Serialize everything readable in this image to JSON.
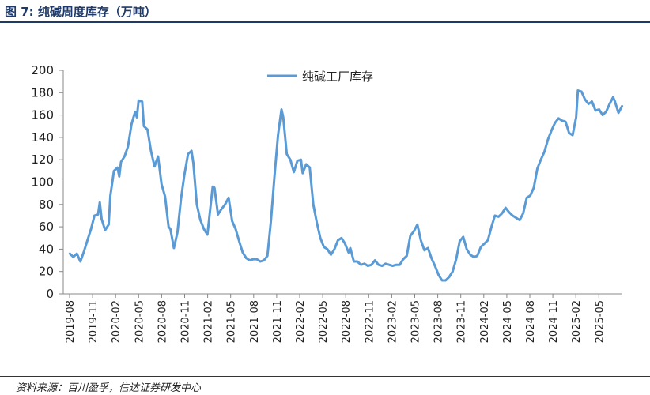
{
  "header": {
    "title": "图 7:  纯碱周度库存（万吨）"
  },
  "footer": {
    "source": "资料来源：百川盈孚，信达证券研发中心"
  },
  "colors": {
    "series": "#5b9bd5",
    "title": "#1f3a68"
  },
  "chart_data": {
    "type": "line",
    "title": "",
    "xlabel": "",
    "ylabel": "",
    "ylim": [
      0,
      200
    ],
    "yticks": [
      0,
      20,
      40,
      60,
      80,
      100,
      120,
      140,
      160,
      180,
      200
    ],
    "xtick_labels": [
      "2019-08",
      "2019-11",
      "2020-02",
      "2020-05",
      "2020-08",
      "2020-11",
      "2021-02",
      "2021-05",
      "2021-08",
      "2021-11",
      "2022-02",
      "2022-05",
      "2022-08",
      "2022-11",
      "2023-02",
      "2023-05",
      "2023-08",
      "2023-11",
      "2024-02",
      "2024-05",
      "2024-08",
      "2024-11",
      "2025-02",
      "2025-05"
    ],
    "legend": {
      "position": "top-center"
    },
    "grid": false,
    "series": [
      {
        "name": "纯碱工厂库存",
        "points": [
          [
            "2019-08-02",
            36
          ],
          [
            "2019-08-16",
            33
          ],
          [
            "2019-08-30",
            36
          ],
          [
            "2019-09-13",
            29
          ],
          [
            "2019-09-27",
            38
          ],
          [
            "2019-10-11",
            48
          ],
          [
            "2019-10-25",
            58
          ],
          [
            "2019-11-08",
            70
          ],
          [
            "2019-11-22",
            71
          ],
          [
            "2019-11-29",
            82
          ],
          [
            "2019-12-06",
            67
          ],
          [
            "2019-12-20",
            57
          ],
          [
            "2020-01-03",
            62
          ],
          [
            "2020-01-10",
            88
          ],
          [
            "2020-01-24",
            110
          ],
          [
            "2020-02-07",
            113
          ],
          [
            "2020-02-14",
            105
          ],
          [
            "2020-02-21",
            118
          ],
          [
            "2020-03-06",
            123
          ],
          [
            "2020-03-20",
            132
          ],
          [
            "2020-04-03",
            152
          ],
          [
            "2020-04-17",
            163
          ],
          [
            "2020-04-24",
            158
          ],
          [
            "2020-05-01",
            173
          ],
          [
            "2020-05-15",
            172
          ],
          [
            "2020-05-22",
            150
          ],
          [
            "2020-06-05",
            147
          ],
          [
            "2020-06-19",
            128
          ],
          [
            "2020-07-03",
            114
          ],
          [
            "2020-07-17",
            123
          ],
          [
            "2020-07-31",
            98
          ],
          [
            "2020-08-14",
            87
          ],
          [
            "2020-08-28",
            60
          ],
          [
            "2020-09-04",
            58
          ],
          [
            "2020-09-18",
            41
          ],
          [
            "2020-10-02",
            55
          ],
          [
            "2020-10-16",
            85
          ],
          [
            "2020-10-30",
            107
          ],
          [
            "2020-11-13",
            125
          ],
          [
            "2020-11-27",
            128
          ],
          [
            "2020-12-04",
            117
          ],
          [
            "2020-12-18",
            80
          ],
          [
            "2021-01-01",
            66
          ],
          [
            "2021-01-15",
            58
          ],
          [
            "2021-01-29",
            53
          ],
          [
            "2021-02-12",
            82
          ],
          [
            "2021-02-19",
            96
          ],
          [
            "2021-02-26",
            95
          ],
          [
            "2021-03-12",
            71
          ],
          [
            "2021-03-26",
            76
          ],
          [
            "2021-04-09",
            80
          ],
          [
            "2021-04-23",
            86
          ],
          [
            "2021-05-07",
            65
          ],
          [
            "2021-05-21",
            58
          ],
          [
            "2021-06-04",
            47
          ],
          [
            "2021-06-18",
            37
          ],
          [
            "2021-07-02",
            32
          ],
          [
            "2021-07-16",
            30
          ],
          [
            "2021-07-30",
            31
          ],
          [
            "2021-08-13",
            31
          ],
          [
            "2021-08-27",
            29
          ],
          [
            "2021-09-10",
            30
          ],
          [
            "2021-09-24",
            34
          ],
          [
            "2021-10-08",
            65
          ],
          [
            "2021-10-22",
            105
          ],
          [
            "2021-11-05",
            142
          ],
          [
            "2021-11-19",
            165
          ],
          [
            "2021-11-26",
            158
          ],
          [
            "2021-12-10",
            125
          ],
          [
            "2021-12-24",
            120
          ],
          [
            "2022-01-07",
            109
          ],
          [
            "2022-01-21",
            119
          ],
          [
            "2022-02-04",
            120
          ],
          [
            "2022-02-11",
            108
          ],
          [
            "2022-02-25",
            116
          ],
          [
            "2022-03-11",
            113
          ],
          [
            "2022-03-25",
            80
          ],
          [
            "2022-04-08",
            64
          ],
          [
            "2022-04-22",
            50
          ],
          [
            "2022-05-06",
            42
          ],
          [
            "2022-05-20",
            40
          ],
          [
            "2022-06-03",
            35
          ],
          [
            "2022-06-17",
            40
          ],
          [
            "2022-07-01",
            48
          ],
          [
            "2022-07-15",
            50
          ],
          [
            "2022-07-29",
            45
          ],
          [
            "2022-08-12",
            37
          ],
          [
            "2022-08-19",
            41
          ],
          [
            "2022-09-02",
            29
          ],
          [
            "2022-09-16",
            29
          ],
          [
            "2022-09-30",
            26
          ],
          [
            "2022-10-14",
            27
          ],
          [
            "2022-10-28",
            25
          ],
          [
            "2022-11-11",
            26
          ],
          [
            "2022-11-25",
            30
          ],
          [
            "2022-12-09",
            26
          ],
          [
            "2022-12-23",
            25
          ],
          [
            "2023-01-06",
            27
          ],
          [
            "2023-01-20",
            26
          ],
          [
            "2023-02-03",
            25
          ],
          [
            "2023-02-17",
            26
          ],
          [
            "2023-03-03",
            26
          ],
          [
            "2023-03-17",
            31
          ],
          [
            "2023-03-31",
            34
          ],
          [
            "2023-04-14",
            52
          ],
          [
            "2023-04-28",
            56
          ],
          [
            "2023-05-12",
            62
          ],
          [
            "2023-05-26",
            48
          ],
          [
            "2023-06-09",
            39
          ],
          [
            "2023-06-23",
            41
          ],
          [
            "2023-07-07",
            32
          ],
          [
            "2023-07-21",
            25
          ],
          [
            "2023-08-04",
            17
          ],
          [
            "2023-08-18",
            12
          ],
          [
            "2023-09-01",
            12
          ],
          [
            "2023-09-15",
            15
          ],
          [
            "2023-09-29",
            20
          ],
          [
            "2023-10-13",
            31
          ],
          [
            "2023-10-27",
            47
          ],
          [
            "2023-11-10",
            51
          ],
          [
            "2023-11-24",
            40
          ],
          [
            "2023-12-08",
            35
          ],
          [
            "2023-12-22",
            33
          ],
          [
            "2024-01-05",
            34
          ],
          [
            "2024-01-19",
            42
          ],
          [
            "2024-02-02",
            45
          ],
          [
            "2024-02-16",
            48
          ],
          [
            "2024-03-01",
            60
          ],
          [
            "2024-03-15",
            70
          ],
          [
            "2024-03-29",
            69
          ],
          [
            "2024-04-12",
            72
          ],
          [
            "2024-04-26",
            77
          ],
          [
            "2024-05-10",
            73
          ],
          [
            "2024-05-24",
            70
          ],
          [
            "2024-06-07",
            68
          ],
          [
            "2024-06-21",
            66
          ],
          [
            "2024-07-05",
            72
          ],
          [
            "2024-07-19",
            86
          ],
          [
            "2024-08-02",
            88
          ],
          [
            "2024-08-16",
            95
          ],
          [
            "2024-08-30",
            112
          ],
          [
            "2024-09-13",
            120
          ],
          [
            "2024-09-27",
            127
          ],
          [
            "2024-10-11",
            138
          ],
          [
            "2024-10-25",
            146
          ],
          [
            "2024-11-08",
            153
          ],
          [
            "2024-11-22",
            157
          ],
          [
            "2024-12-06",
            155
          ],
          [
            "2024-12-20",
            154
          ],
          [
            "2025-01-03",
            144
          ],
          [
            "2025-01-17",
            142
          ],
          [
            "2025-01-31",
            158
          ],
          [
            "2025-02-07",
            182
          ],
          [
            "2025-02-21",
            181
          ],
          [
            "2025-03-07",
            174
          ],
          [
            "2025-03-21",
            170
          ],
          [
            "2025-04-04",
            172
          ],
          [
            "2025-04-18",
            164
          ],
          [
            "2025-05-02",
            165
          ],
          [
            "2025-05-16",
            160
          ],
          [
            "2025-05-30",
            163
          ],
          [
            "2025-06-13",
            170
          ],
          [
            "2025-06-27",
            176
          ],
          [
            "2025-07-04",
            172
          ],
          [
            "2025-07-18",
            162
          ],
          [
            "2025-08-01",
            168
          ]
        ]
      }
    ]
  }
}
